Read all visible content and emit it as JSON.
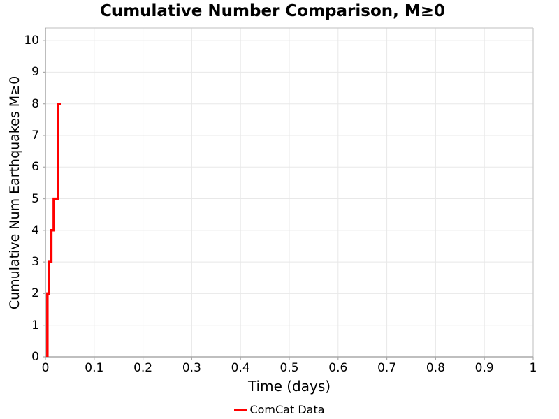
{
  "figure": {
    "background": "#ffffff"
  },
  "chart_data": {
    "type": "line",
    "subtype": "cumulative-step",
    "title": "Cumulative Number Comparison, M≥0",
    "xlabel": "Time (days)",
    "ylabel": "Cumulative Num Earthquakes M≥0",
    "xlim": [
      0,
      1
    ],
    "ylim": [
      0,
      10.4
    ],
    "xticks": [
      0,
      0.1,
      0.2,
      0.3,
      0.4,
      0.5,
      0.6,
      0.7,
      0.8,
      0.9,
      1
    ],
    "xtick_labels": [
      "0",
      "0.1",
      "0.2",
      "0.3",
      "0.4",
      "0.5",
      "0.6",
      "0.7",
      "0.8",
      "0.9",
      "1"
    ],
    "yticks": [
      0,
      1,
      2,
      3,
      4,
      5,
      6,
      7,
      8,
      9,
      10
    ],
    "ytick_labels": [
      "0",
      "1",
      "2",
      "3",
      "4",
      "5",
      "6",
      "7",
      "8",
      "9",
      "10"
    ],
    "grid": true,
    "grid_color": "#e8e8e8",
    "axis_color": "#999999",
    "box_color": "#cccccc",
    "tick_color": "#aaaaaa",
    "text_color": "#000000",
    "legend": {
      "position": "bottom-center",
      "entries": [
        {
          "label": "ComCat Data",
          "color": "#ff0000"
        }
      ]
    },
    "series": [
      {
        "name": "ComCat Data",
        "color": "#ff0000",
        "line_width": 3.5,
        "points": [
          [
            0.004,
            0
          ],
          [
            0.004,
            2
          ],
          [
            0.007,
            2
          ],
          [
            0.007,
            3
          ],
          [
            0.012,
            3
          ],
          [
            0.012,
            4
          ],
          [
            0.017,
            4
          ],
          [
            0.017,
            5
          ],
          [
            0.026,
            5
          ],
          [
            0.026,
            8
          ],
          [
            0.033,
            8
          ]
        ]
      }
    ]
  }
}
